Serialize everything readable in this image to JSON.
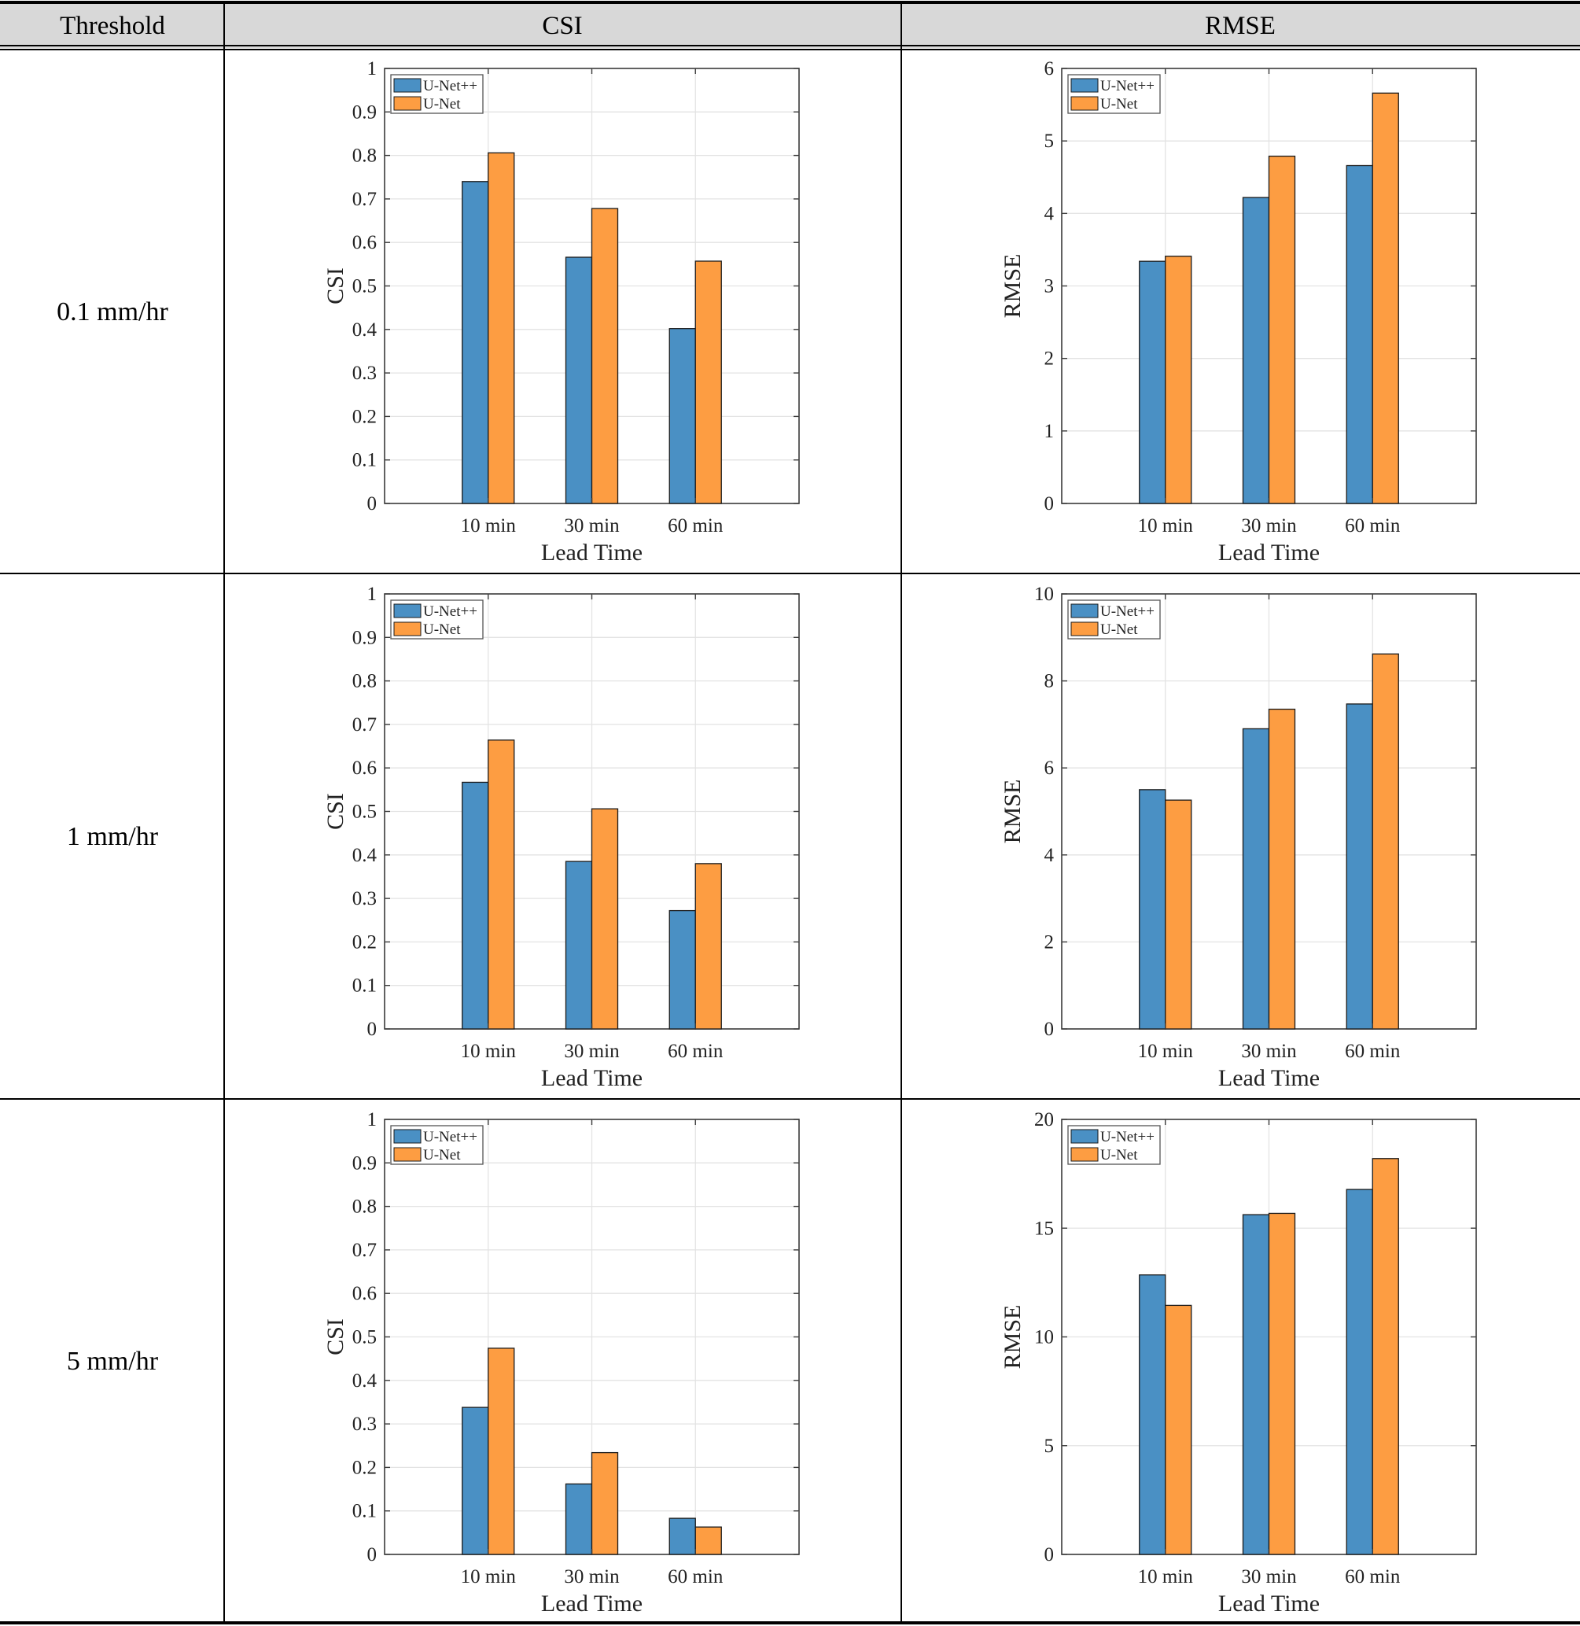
{
  "table": {
    "headers": [
      "Threshold",
      "CSI",
      "RMSE"
    ],
    "rows": [
      {
        "threshold": "0.1 mm/hr"
      },
      {
        "threshold": "1 mm/hr"
      },
      {
        "threshold": "5 mm/hr"
      }
    ]
  },
  "colors": {
    "unetpp": "#4a90c4",
    "unet": "#fd9d42",
    "header_bg": "#d8d8d8"
  },
  "chart_data": [
    {
      "type": "bar",
      "metric": "CSI",
      "threshold": "0.1 mm/hr",
      "categories": [
        "10 min",
        "30 min",
        "60 min"
      ],
      "series": [
        {
          "name": "U-Net++",
          "values": [
            0.74,
            0.566,
            0.402
          ]
        },
        {
          "name": "U-Net",
          "values": [
            0.806,
            0.678,
            0.557
          ]
        }
      ],
      "xlabel": "Lead Time",
      "ylabel": "CSI",
      "ylim": [
        0,
        1
      ],
      "yticks": [
        0,
        0.1,
        0.2,
        0.3,
        0.4,
        0.5,
        0.6,
        0.7,
        0.8,
        0.9,
        1
      ],
      "legend": "top-left",
      "grid": true
    },
    {
      "type": "bar",
      "metric": "RMSE",
      "threshold": "0.1 mm/hr",
      "categories": [
        "10 min",
        "30 min",
        "60 min"
      ],
      "series": [
        {
          "name": "U-Net++",
          "values": [
            3.34,
            4.22,
            4.66
          ]
        },
        {
          "name": "U-Net",
          "values": [
            3.41,
            4.79,
            5.66
          ]
        }
      ],
      "xlabel": "Lead Time",
      "ylabel": "RMSE",
      "ylim": [
        0,
        6
      ],
      "yticks": [
        0,
        1,
        2,
        3,
        4,
        5,
        6
      ],
      "legend": "top-left",
      "grid": true
    },
    {
      "type": "bar",
      "metric": "CSI",
      "threshold": "1 mm/hr",
      "categories": [
        "10 min",
        "30 min",
        "60 min"
      ],
      "series": [
        {
          "name": "U-Net++",
          "values": [
            0.567,
            0.385,
            0.272
          ]
        },
        {
          "name": "U-Net",
          "values": [
            0.664,
            0.506,
            0.38
          ]
        }
      ],
      "xlabel": "Lead Time",
      "ylabel": "CSI",
      "ylim": [
        0,
        1
      ],
      "yticks": [
        0,
        0.1,
        0.2,
        0.3,
        0.4,
        0.5,
        0.6,
        0.7,
        0.8,
        0.9,
        1
      ],
      "legend": "top-left",
      "grid": true
    },
    {
      "type": "bar",
      "metric": "RMSE",
      "threshold": "1 mm/hr",
      "categories": [
        "10 min",
        "30 min",
        "60 min"
      ],
      "series": [
        {
          "name": "U-Net++",
          "values": [
            5.5,
            6.9,
            7.47
          ]
        },
        {
          "name": "U-Net",
          "values": [
            5.26,
            7.35,
            8.62
          ]
        }
      ],
      "xlabel": "Lead Time",
      "ylabel": "RMSE",
      "ylim": [
        0,
        10
      ],
      "yticks": [
        0,
        2,
        4,
        6,
        8,
        10
      ],
      "legend": "top-left",
      "grid": true
    },
    {
      "type": "bar",
      "metric": "CSI",
      "threshold": "5 mm/hr",
      "categories": [
        "10 min",
        "30 min",
        "60 min"
      ],
      "series": [
        {
          "name": "U-Net++",
          "values": [
            0.338,
            0.162,
            0.083
          ]
        },
        {
          "name": "U-Net",
          "values": [
            0.474,
            0.234,
            0.063
          ]
        }
      ],
      "xlabel": "Lead Time",
      "ylabel": "CSI",
      "ylim": [
        0,
        1
      ],
      "yticks": [
        0,
        0.1,
        0.2,
        0.3,
        0.4,
        0.5,
        0.6,
        0.7,
        0.8,
        0.9,
        1
      ],
      "legend": "top-left",
      "grid": true
    },
    {
      "type": "bar",
      "metric": "RMSE",
      "threshold": "5 mm/hr",
      "categories": [
        "10 min",
        "30 min",
        "60 min"
      ],
      "series": [
        {
          "name": "U-Net++",
          "values": [
            12.85,
            15.62,
            16.78
          ]
        },
        {
          "name": "U-Net",
          "values": [
            11.45,
            15.68,
            18.2
          ]
        }
      ],
      "xlabel": "Lead Time",
      "ylabel": "RMSE",
      "ylim": [
        0,
        20
      ],
      "yticks": [
        0,
        5,
        10,
        15,
        20
      ],
      "legend": "top-left",
      "grid": true
    }
  ]
}
